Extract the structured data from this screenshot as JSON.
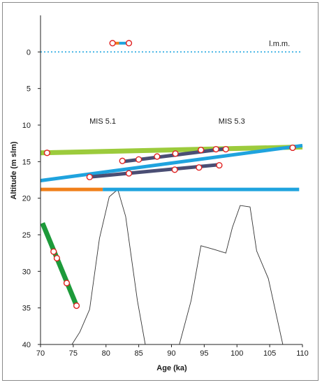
{
  "chart_data": {
    "type": "line",
    "xlabel": "Age (ka)",
    "ylabel": "Altitude (m slm)",
    "xlim": [
      70,
      110
    ],
    "ylim": [
      40,
      -5
    ],
    "y_inverted": true,
    "xticks": [
      70,
      75,
      80,
      85,
      90,
      95,
      100,
      105,
      110
    ],
    "yticks": [
      0,
      5,
      10,
      15,
      20,
      25,
      30,
      35,
      40
    ],
    "grid": false,
    "annotations": [
      {
        "text": "l.m.m.",
        "x": 106.5,
        "y": -0.8
      },
      {
        "text": "MIS 5.1",
        "x": 79.5,
        "y": 9.8
      },
      {
        "text": "MIS 5.3",
        "x": 99.2,
        "y": 9.8
      }
    ],
    "reference_line": {
      "label": "l.m.m.",
      "y": 0,
      "x": [
        70,
        110
      ],
      "color": "#22a7e0",
      "style": "dotted"
    },
    "sea_level_curve": {
      "color": "#333333",
      "segments": [
        {
          "x": [
            74.8,
            76.0,
            77.5,
            79.0,
            80.5,
            81.8,
            83.0,
            84.8,
            86.0
          ],
          "y": [
            40,
            38.3,
            35.2,
            25.5,
            19.8,
            18.8,
            22.5,
            34.0,
            40
          ]
        },
        {
          "x": [
            91.2,
            93.0,
            94.5,
            96.5,
            98.3,
            99.3,
            100.5,
            102.0,
            103.0,
            104.8,
            107.0
          ],
          "y": [
            40,
            34.0,
            26.5,
            27.0,
            27.5,
            24.0,
            21.0,
            21.2,
            27.2,
            31.0,
            40
          ]
        }
      ]
    },
    "series": [
      {
        "color": "#9ccb3c",
        "width": 7,
        "x": [
          70,
          110
        ],
        "y": [
          13.8,
          13.0
        ]
      },
      {
        "color": "#1fa3de",
        "width": 5,
        "x": [
          70,
          110
        ],
        "y": [
          17.6,
          12.8
        ]
      },
      {
        "color": "#4a4e74",
        "width": 5,
        "x": [
          82.5,
          98.5
        ],
        "y": [
          15.0,
          13.2
        ]
      },
      {
        "color": "#4a4e74",
        "width": 5,
        "x": [
          77.5,
          97.5
        ],
        "y": [
          17.1,
          15.4
        ]
      },
      {
        "color": "#f07f1a",
        "width": 5,
        "x": [
          70,
          79.5
        ],
        "y": [
          18.8,
          18.8
        ]
      },
      {
        "color": "#1fa3de",
        "width": 5,
        "x": [
          79.5,
          109.5
        ],
        "y": [
          18.8,
          18.8
        ]
      },
      {
        "color": "#1d9a3a",
        "width": 7,
        "x": [
          70.3,
          75.5
        ],
        "y": [
          23.4,
          34.7
        ]
      },
      {
        "color": "#f07f1a",
        "width": 4,
        "x": [
          81.0,
          82.0
        ],
        "y": [
          -1.2,
          -1.2
        ]
      },
      {
        "color": "#1fa3de",
        "width": 4,
        "x": [
          82.0,
          83.5
        ],
        "y": [
          -1.2,
          -1.2
        ]
      }
    ],
    "points": [
      {
        "x": 71.0,
        "y": 13.8
      },
      {
        "x": 82.5,
        "y": 14.9
      },
      {
        "x": 85.0,
        "y": 14.7
      },
      {
        "x": 87.8,
        "y": 14.3
      },
      {
        "x": 90.6,
        "y": 13.9
      },
      {
        "x": 94.5,
        "y": 13.4
      },
      {
        "x": 96.8,
        "y": 13.3
      },
      {
        "x": 98.3,
        "y": 13.3
      },
      {
        "x": 108.5,
        "y": 13.1
      },
      {
        "x": 77.5,
        "y": 17.1
      },
      {
        "x": 83.5,
        "y": 16.6
      },
      {
        "x": 90.5,
        "y": 16.1
      },
      {
        "x": 94.2,
        "y": 15.8
      },
      {
        "x": 97.3,
        "y": 15.5
      },
      {
        "x": 72.0,
        "y": 27.3
      },
      {
        "x": 72.5,
        "y": 28.2
      },
      {
        "x": 74.0,
        "y": 31.6
      },
      {
        "x": 75.5,
        "y": 34.7
      },
      {
        "x": 81.0,
        "y": -1.2
      },
      {
        "x": 83.5,
        "y": -1.2
      }
    ]
  }
}
